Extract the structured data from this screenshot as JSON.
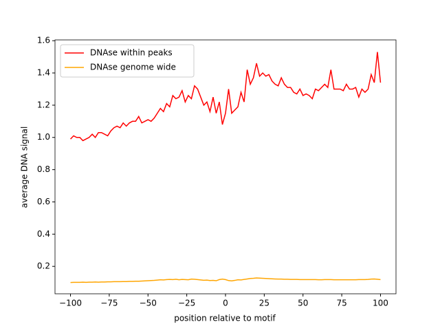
{
  "chart_data": {
    "type": "line",
    "xlabel": "position relative to motif",
    "ylabel": "average DNA signal",
    "xlim": [
      -110,
      110
    ],
    "ylim": [
      0.03,
      1.605
    ],
    "xticks": [
      {
        "value": -100,
        "label": "−100"
      },
      {
        "value": -75,
        "label": "−75"
      },
      {
        "value": -50,
        "label": "−50"
      },
      {
        "value": -25,
        "label": "−25"
      },
      0,
      25,
      50,
      75,
      100
    ],
    "yticks": [
      0.2,
      0.4,
      0.6,
      0.8,
      {
        "value": 1,
        "label": "1.0"
      },
      1.2,
      1.4,
      1.6
    ],
    "legend": "upper left",
    "x": [
      -100,
      -98,
      -96,
      -94,
      -92,
      -90,
      -88,
      -86,
      -84,
      -82,
      -80,
      -78,
      -76,
      -74,
      -72,
      -70,
      -68,
      -66,
      -64,
      -62,
      -60,
      -58,
      -56,
      -54,
      -52,
      -50,
      -48,
      -46,
      -44,
      -42,
      -40,
      -38,
      -36,
      -34,
      -32,
      -30,
      -28,
      -26,
      -24,
      -22,
      -20,
      -18,
      -16,
      -14,
      -12,
      -10,
      -8,
      -6,
      -4,
      -2,
      0,
      2,
      4,
      6,
      8,
      10,
      12,
      14,
      16,
      18,
      20,
      22,
      24,
      26,
      28,
      30,
      32,
      34,
      36,
      38,
      40,
      42,
      44,
      46,
      48,
      50,
      52,
      54,
      56,
      58,
      60,
      62,
      64,
      66,
      68,
      70,
      72,
      74,
      76,
      78,
      80,
      82,
      84,
      86,
      88,
      90,
      92,
      94,
      96,
      98,
      100
    ],
    "series": [
      {
        "name": "DNAse within peaks",
        "color": "#ff0000",
        "values": [
          0.99,
          1.01,
          1.0,
          1.0,
          0.98,
          0.99,
          1.0,
          1.02,
          1.0,
          1.03,
          1.03,
          1.02,
          1.01,
          1.04,
          1.06,
          1.07,
          1.06,
          1.09,
          1.07,
          1.09,
          1.1,
          1.1,
          1.13,
          1.09,
          1.1,
          1.11,
          1.1,
          1.12,
          1.15,
          1.18,
          1.16,
          1.21,
          1.19,
          1.26,
          1.24,
          1.25,
          1.29,
          1.22,
          1.26,
          1.24,
          1.32,
          1.3,
          1.25,
          1.2,
          1.22,
          1.16,
          1.25,
          1.15,
          1.22,
          1.08,
          1.15,
          1.3,
          1.15,
          1.17,
          1.19,
          1.28,
          1.22,
          1.42,
          1.33,
          1.37,
          1.46,
          1.38,
          1.4,
          1.38,
          1.39,
          1.35,
          1.33,
          1.32,
          1.37,
          1.33,
          1.31,
          1.31,
          1.28,
          1.27,
          1.3,
          1.26,
          1.27,
          1.26,
          1.24,
          1.3,
          1.29,
          1.31,
          1.33,
          1.31,
          1.42,
          1.3,
          1.3,
          1.3,
          1.29,
          1.33,
          1.3,
          1.3,
          1.31,
          1.25,
          1.3,
          1.28,
          1.3,
          1.39,
          1.34,
          1.53,
          1.34
        ]
      },
      {
        "name": "DNAse genome wide",
        "color": "#ffa500",
        "values": [
          0.1,
          0.101,
          0.101,
          0.101,
          0.102,
          0.101,
          0.102,
          0.102,
          0.103,
          0.102,
          0.103,
          0.103,
          0.104,
          0.104,
          0.105,
          0.105,
          0.105,
          0.106,
          0.106,
          0.107,
          0.107,
          0.108,
          0.108,
          0.109,
          0.11,
          0.111,
          0.112,
          0.113,
          0.115,
          0.117,
          0.116,
          0.118,
          0.119,
          0.118,
          0.12,
          0.117,
          0.119,
          0.118,
          0.117,
          0.121,
          0.12,
          0.118,
          0.116,
          0.114,
          0.115,
          0.112,
          0.113,
          0.111,
          0.118,
          0.121,
          0.118,
          0.112,
          0.11,
          0.113,
          0.117,
          0.116,
          0.119,
          0.122,
          0.125,
          0.126,
          0.128,
          0.127,
          0.126,
          0.125,
          0.124,
          0.123,
          0.122,
          0.121,
          0.121,
          0.12,
          0.12,
          0.119,
          0.119,
          0.119,
          0.118,
          0.118,
          0.118,
          0.118,
          0.118,
          0.118,
          0.117,
          0.117,
          0.118,
          0.118,
          0.118,
          0.117,
          0.117,
          0.117,
          0.117,
          0.117,
          0.117,
          0.117,
          0.117,
          0.118,
          0.118,
          0.118,
          0.119,
          0.121,
          0.122,
          0.12,
          0.118
        ]
      }
    ]
  }
}
